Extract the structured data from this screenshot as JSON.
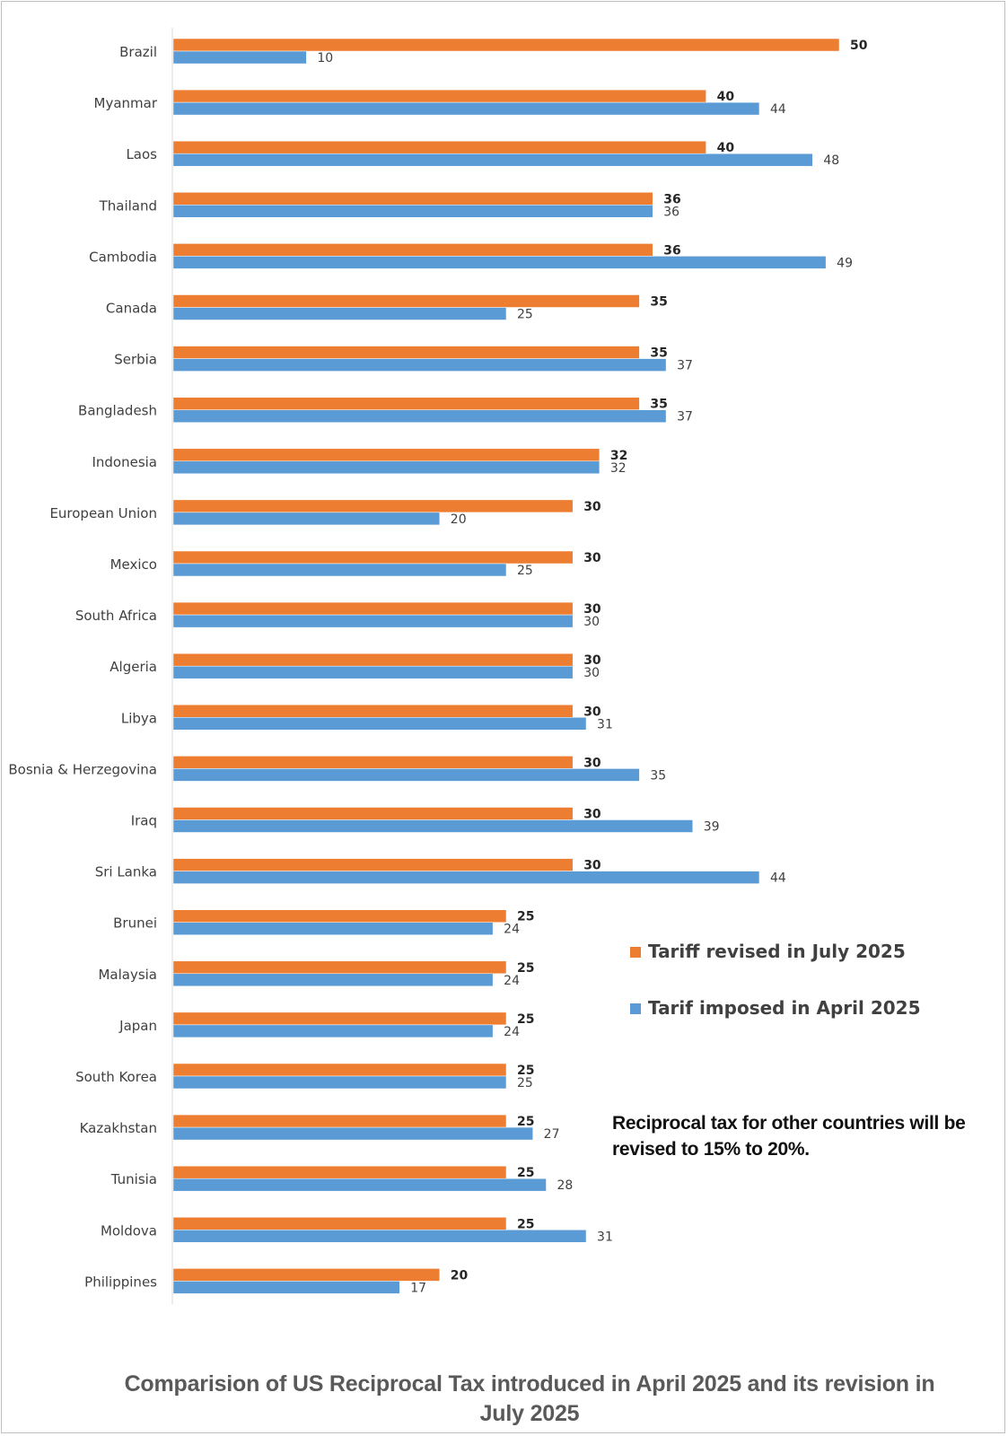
{
  "chart_data": {
    "type": "bar",
    "orientation": "horizontal",
    "title": "Comparision of US Reciprocal Tax introduced in April 2025 and its revision in July 2025",
    "categories": [
      "Brazil",
      "Myanmar",
      "Laos",
      "Thailand",
      "Cambodia",
      "Canada",
      "Serbia",
      "Bangladesh",
      "Indonesia",
      "European Union",
      "Mexico",
      "South Africa",
      "Algeria",
      "Libya",
      "Bosnia & Herzegovina",
      "Iraq",
      "Sri Lanka",
      "Brunei",
      "Malaysia",
      "Japan",
      "South Korea",
      "Kazakhstan",
      "Tunisia",
      "Moldova",
      "Philippines"
    ],
    "series": [
      {
        "name": "Tariff revised in July 2025",
        "color": "#ED7D31",
        "values": [
          50,
          40,
          40,
          36,
          36,
          35,
          35,
          35,
          32,
          30,
          30,
          30,
          30,
          30,
          30,
          30,
          30,
          25,
          25,
          25,
          25,
          25,
          25,
          25,
          20
        ]
      },
      {
        "name": "Tarif imposed in April 2025",
        "color": "#5B9BD5",
        "values": [
          10,
          44,
          48,
          36,
          49,
          25,
          37,
          37,
          32,
          20,
          25,
          30,
          30,
          31,
          35,
          39,
          44,
          24,
          24,
          24,
          25,
          27,
          28,
          31,
          17
        ]
      }
    ],
    "xlim": [
      0,
      50
    ],
    "grid": false,
    "legend_position": "right"
  },
  "note": "Reciprocal tax for other countries will be revised to 15% to 20%."
}
